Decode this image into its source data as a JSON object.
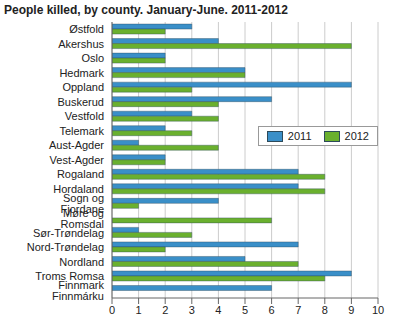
{
  "chart_data": {
    "type": "bar",
    "title": "People killed, by county. January-June. 2011-2012",
    "orientation": "horizontal",
    "categories": [
      "Østfold",
      "Akershus",
      "Oslo",
      "Hedmark",
      "Oppland",
      "Buskerud",
      "Vestfold",
      "Telemark",
      "Aust-Agder",
      "Vest-Agder",
      "Rogaland",
      "Hordaland",
      "Sogn og Fjordane",
      "Møre og Romsdal",
      "Sør-Trøndelag",
      "Nord-Trøndelag",
      "Nordland",
      "Troms Romsa",
      "Finnmark Finnmárku"
    ],
    "series": [
      {
        "name": "2011",
        "color": "#3a8fc8",
        "values": [
          3,
          4,
          2,
          5,
          9,
          6,
          3,
          2,
          1,
          2,
          7,
          7,
          4,
          0,
          1,
          7,
          5,
          9,
          6
        ]
      },
      {
        "name": "2012",
        "color": "#6ab02e",
        "values": [
          2,
          9,
          2,
          5,
          3,
          4,
          4,
          3,
          4,
          2,
          8,
          8,
          1,
          6,
          3,
          2,
          7,
          8,
          0
        ]
      }
    ],
    "xlim": [
      0,
      10
    ],
    "xticks": [
      0,
      1,
      2,
      3,
      4,
      5,
      6,
      7,
      8,
      9,
      10
    ],
    "grid": true,
    "legend": "right"
  }
}
